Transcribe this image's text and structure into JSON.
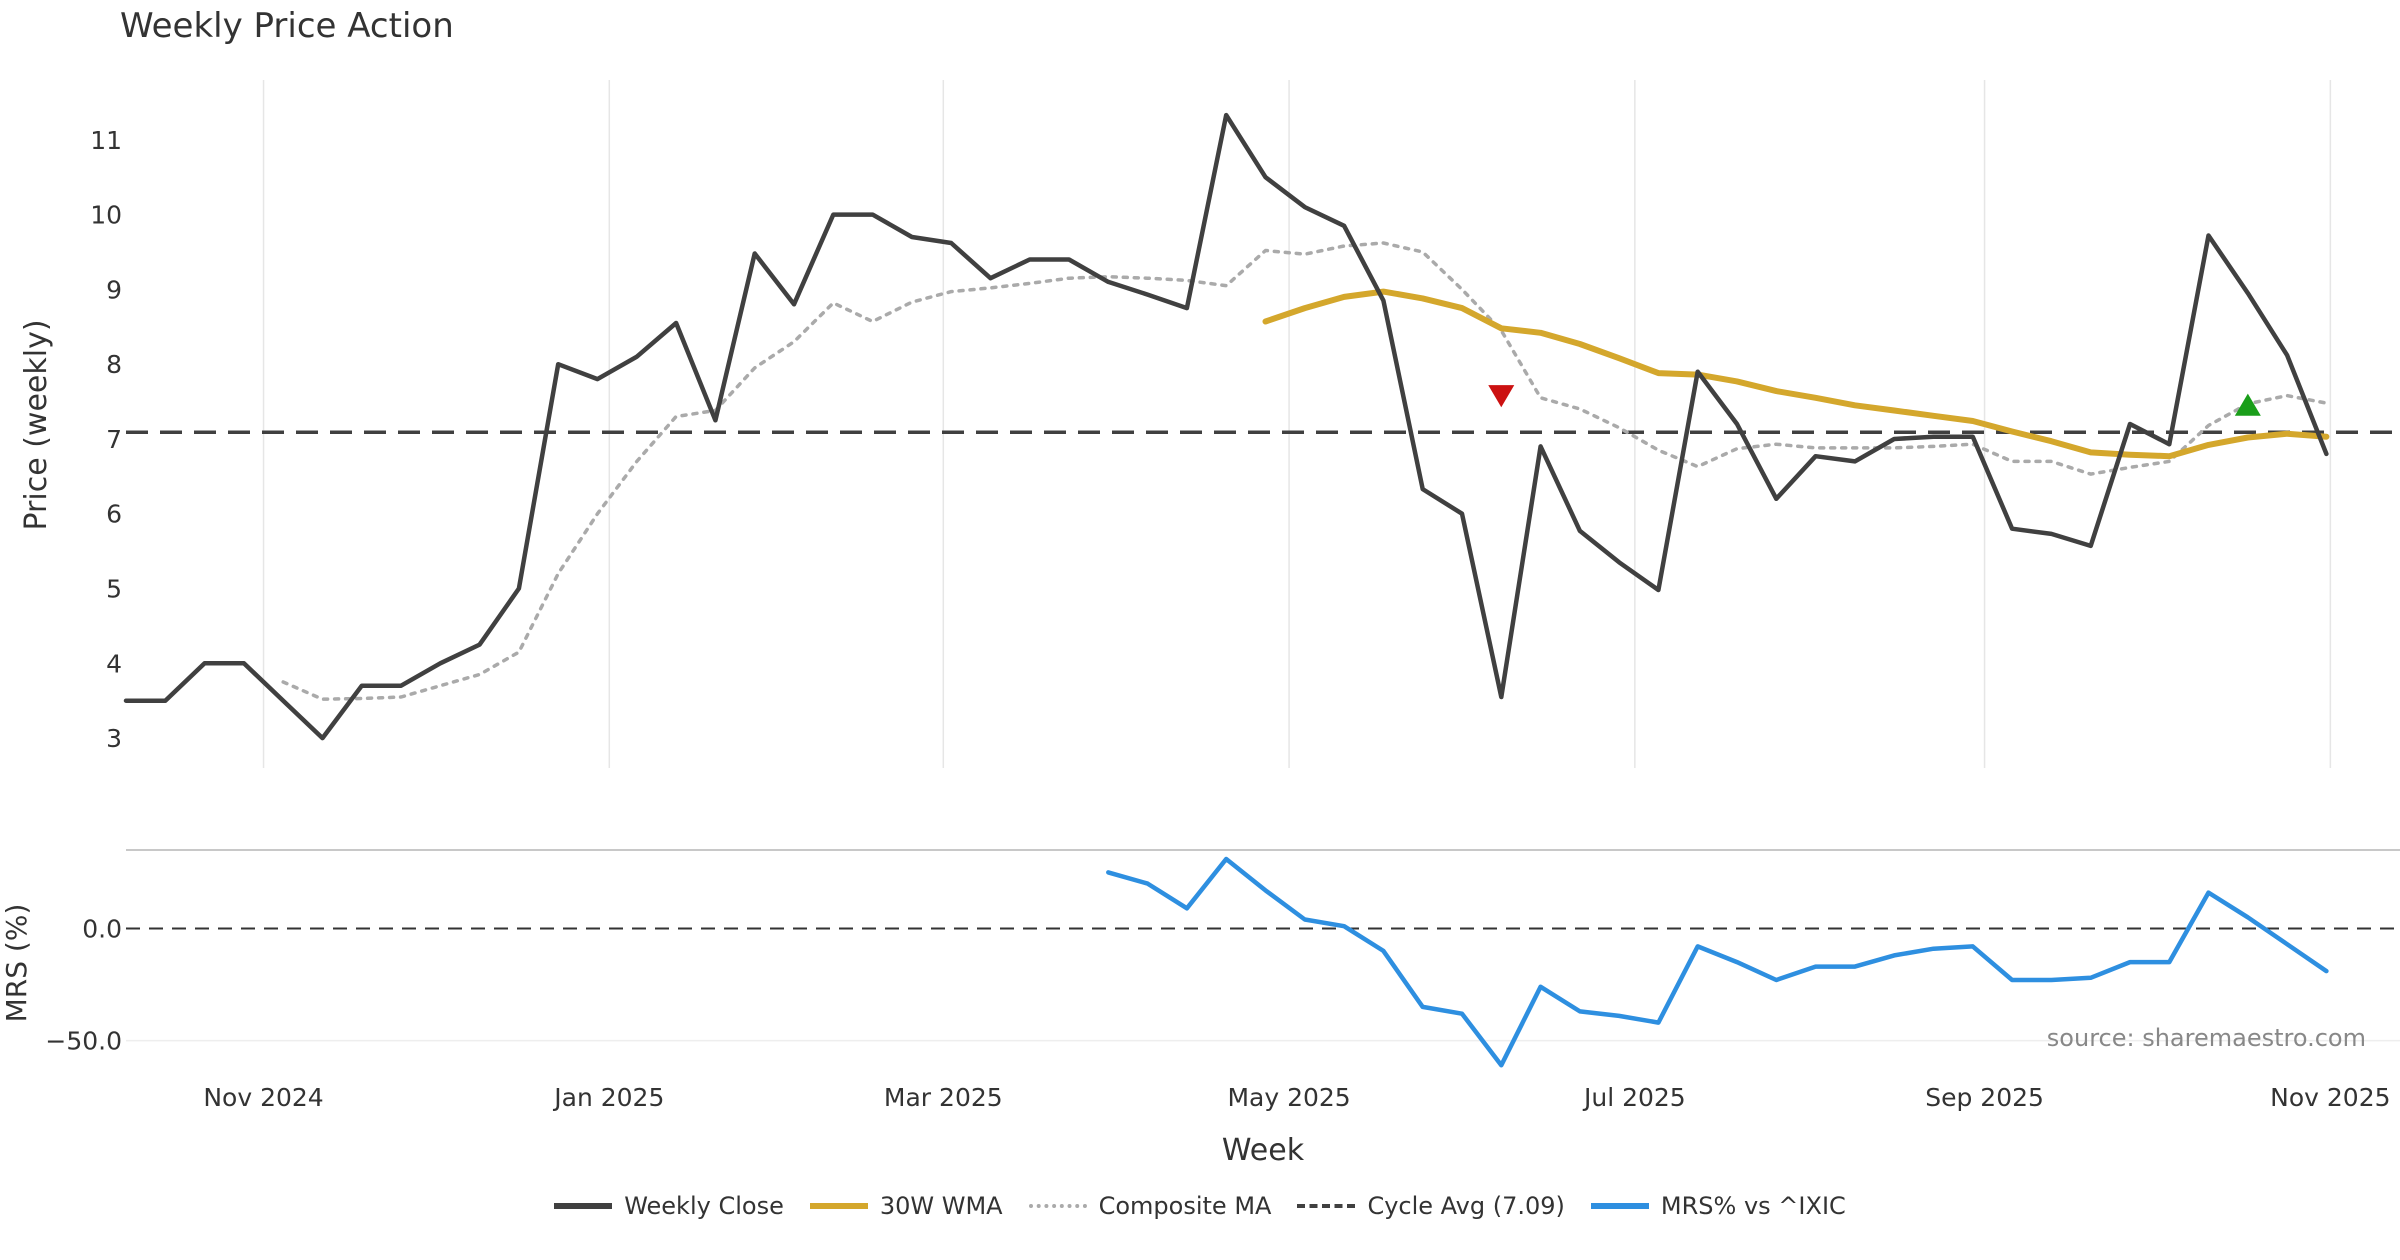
{
  "title": "Weekly Price Action",
  "source_note": "source: sharemaestro.com",
  "legend": [
    {
      "label": "Weekly Close",
      "color": "#404040",
      "style": "solid"
    },
    {
      "label": "30W WMA",
      "color": "#D4A72C",
      "style": "solid"
    },
    {
      "label": "Composite MA",
      "color": "#AAAAAA",
      "style": "dotted"
    },
    {
      "label": "Cycle Avg (7.09)",
      "color": "#404040",
      "style": "dashed"
    },
    {
      "label": "MRS% vs ^IXIC",
      "color": "#2E8FE0",
      "style": "solid"
    }
  ],
  "chart_data": [
    {
      "type": "line",
      "panel": "price",
      "ylabel": "Price (weekly)",
      "xlabel": "Week",
      "ylim": [
        2.6,
        11.8
      ],
      "yticks": [
        3,
        4,
        5,
        6,
        7,
        8,
        9,
        10,
        11
      ],
      "x_tick_labels": [
        "Nov 2024",
        "Jan 2025",
        "Mar 2025",
        "May 2025",
        "Jul 2025",
        "Sep 2025",
        "Nov 2025"
      ],
      "x_tick_weeks": [
        3.5,
        12.3,
        20.8,
        29.6,
        38.4,
        47.3,
        56.1
      ],
      "grid": "vertical",
      "cycle_avg": 7.09,
      "series": [
        {
          "name": "Weekly Close",
          "x_start_week": 0,
          "values": [
            3.5,
            3.5,
            4.0,
            4.0,
            3.5,
            3.0,
            3.7,
            3.7,
            4.0,
            4.25,
            5.0,
            8.0,
            7.8,
            8.1,
            8.55,
            7.25,
            9.48,
            8.8,
            10.0,
            10.0,
            9.7,
            9.62,
            9.15,
            9.4,
            9.4,
            9.1,
            8.93,
            8.75,
            11.33,
            10.5,
            10.1,
            9.85,
            8.85,
            6.33,
            6.0,
            3.55,
            6.9,
            5.77,
            5.35,
            4.98,
            7.9,
            7.2,
            6.2,
            6.77,
            6.7,
            7.0,
            7.03,
            7.03,
            5.8,
            5.73,
            5.57,
            7.2,
            6.93,
            9.72,
            8.95,
            8.12,
            6.8
          ]
        },
        {
          "name": "30W WMA",
          "x_start_week": 29,
          "values": [
            8.57,
            8.75,
            8.9,
            8.97,
            8.88,
            8.75,
            8.48,
            8.42,
            8.27,
            8.08,
            7.88,
            7.86,
            7.77,
            7.64,
            7.55,
            7.45,
            7.38,
            7.31,
            7.24,
            7.1,
            6.97,
            6.82,
            6.79,
            6.77,
            6.92,
            7.02,
            7.07,
            7.03
          ]
        },
        {
          "name": "Composite MA",
          "x_start_week": 4,
          "values": [
            3.75,
            3.52,
            3.53,
            3.55,
            3.7,
            3.85,
            4.15,
            5.2,
            6.0,
            6.7,
            7.3,
            7.38,
            7.95,
            8.3,
            8.82,
            8.57,
            8.83,
            8.97,
            9.02,
            9.08,
            9.15,
            9.17,
            9.15,
            9.12,
            9.05,
            9.52,
            9.47,
            9.58,
            9.62,
            9.5,
            9.0,
            8.45,
            7.55,
            7.4,
            7.15,
            6.85,
            6.63,
            6.87,
            6.93,
            6.88,
            6.88,
            6.88,
            6.9,
            6.93,
            6.7,
            6.7,
            6.53,
            6.62,
            6.7,
            7.18,
            7.47,
            7.58,
            7.48
          ]
        }
      ],
      "markers": [
        {
          "type": "sell",
          "week": 35,
          "value": 7.58,
          "color": "#CC1111"
        },
        {
          "type": "buy",
          "week": 54,
          "value": 7.45,
          "color": "#1A9E1A"
        }
      ]
    },
    {
      "type": "line",
      "panel": "mrs",
      "ylabel": "MRS (%)",
      "ylim": [
        -60,
        35
      ],
      "yticks": [
        0.0,
        -50.0
      ],
      "ytick_labels": [
        "0.0",
        "−50.0"
      ],
      "zero_line": 0,
      "series": [
        {
          "name": "MRS% vs ^IXIC",
          "x_start_week": 25,
          "values": [
            25,
            20,
            9,
            31,
            17,
            4,
            1,
            -10,
            -35,
            -38,
            -61,
            -26,
            -37,
            -39,
            -42,
            -8,
            -15,
            -23,
            -17,
            -17,
            -12,
            -9,
            -8,
            -23,
            -23,
            -22,
            -15,
            -15,
            16,
            5,
            -7,
            -19
          ]
        }
      ]
    }
  ]
}
